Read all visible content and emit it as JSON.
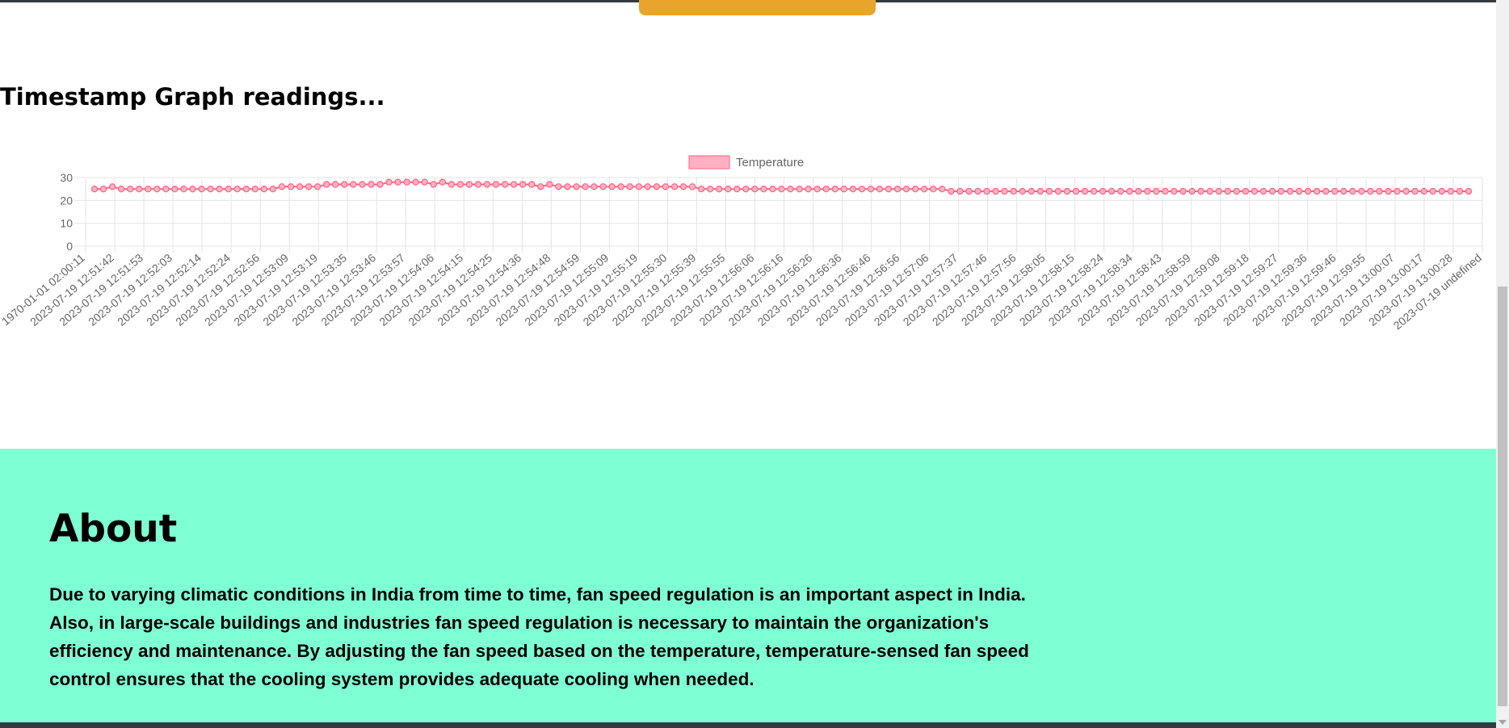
{
  "graph_section": {
    "title": "Timestamp Graph readings..."
  },
  "about": {
    "title": "About",
    "text": "Due to varying climatic conditions in India from time to time, fan speed regulation is an important aspect in India. Also, in large-scale buildings and industries fan speed regulation is necessary to maintain the organization's efficiency and maintenance. By adjusting the fan speed based on the temperature, temperature-sensed fan speed control ensures that the cooling system provides adequate cooling when needed."
  },
  "colors": {
    "about_bg": "#7fffd4",
    "accent_tab": "#e9a42c",
    "series_line": "#ff6384",
    "series_fill": "#ffb1c1"
  },
  "chart_data": {
    "type": "line",
    "title": "",
    "legend": {
      "position": "top-center",
      "entries": [
        "Temperature"
      ]
    },
    "ylim": [
      0,
      30
    ],
    "y_ticks": [
      0,
      10,
      20,
      30
    ],
    "grid": true,
    "x_tick_labels": [
      "1970-01-01 02:00:11",
      "2023-07-19 12:51:42",
      "2023-07-19 12:51:53",
      "2023-07-19 12:52:03",
      "2023-07-19 12:52:14",
      "2023-07-19 12:52:24",
      "2023-07-19 12:52:56",
      "2023-07-19 12:53:09",
      "2023-07-19 12:53:19",
      "2023-07-19 12:53:35",
      "2023-07-19 12:53:46",
      "2023-07-19 12:53:57",
      "2023-07-19 12:54:06",
      "2023-07-19 12:54:15",
      "2023-07-19 12:54:25",
      "2023-07-19 12:54:36",
      "2023-07-19 12:54:48",
      "2023-07-19 12:54:59",
      "2023-07-19 12:55:09",
      "2023-07-19 12:55:19",
      "2023-07-19 12:55:30",
      "2023-07-19 12:55:39",
      "2023-07-19 12:55:55",
      "2023-07-19 12:56:06",
      "2023-07-19 12:56:16",
      "2023-07-19 12:56:26",
      "2023-07-19 12:56:36",
      "2023-07-19 12:56:46",
      "2023-07-19 12:56:56",
      "2023-07-19 12:57:06",
      "2023-07-19 12:57:37",
      "2023-07-19 12:57:46",
      "2023-07-19 12:57:56",
      "2023-07-19 12:58:05",
      "2023-07-19 12:58:15",
      "2023-07-19 12:58:24",
      "2023-07-19 12:58:34",
      "2023-07-19 12:58:43",
      "2023-07-19 12:58:59",
      "2023-07-19 12:59:08",
      "2023-07-19 12:59:18",
      "2023-07-19 12:59:27",
      "2023-07-19 12:59:36",
      "2023-07-19 12:59:46",
      "2023-07-19 12:59:55",
      "2023-07-19 13:00:07",
      "2023-07-19 13:00:17",
      "2023-07-19 13:00:28",
      "2023-07-19 undefined"
    ],
    "series": [
      {
        "name": "Temperature",
        "values": [
          25,
          25,
          26,
          25,
          25,
          25,
          25,
          25,
          25,
          25,
          25,
          25,
          25,
          25,
          25,
          25,
          25,
          25,
          25,
          25,
          25,
          26,
          26,
          26,
          26,
          26,
          27,
          27,
          27,
          27,
          27,
          27,
          27,
          28,
          28,
          28,
          28,
          28,
          27,
          28,
          27,
          27,
          27,
          27,
          27,
          27,
          27,
          27,
          27,
          27,
          26,
          27,
          26,
          26,
          26,
          26,
          26,
          26,
          26,
          26,
          26,
          26,
          26,
          26,
          26,
          26,
          26,
          26,
          25,
          25,
          25,
          25,
          25,
          25,
          25,
          25,
          25,
          25,
          25,
          25,
          25,
          25,
          25,
          25,
          25,
          25,
          25,
          25,
          25,
          25,
          25,
          25,
          25,
          25,
          25,
          25,
          24,
          24,
          24,
          24,
          24,
          24,
          24,
          24,
          24,
          24,
          24,
          24,
          24,
          24,
          24,
          24,
          24,
          24,
          24,
          24,
          24,
          24,
          24,
          24,
          24,
          24,
          24,
          24,
          24,
          24,
          24,
          24,
          24,
          24,
          24,
          24,
          24,
          24,
          24,
          24,
          24,
          24,
          24,
          24,
          24,
          24,
          24,
          24,
          24,
          24,
          24,
          24,
          24,
          24,
          24,
          24,
          24,
          24,
          24
        ]
      }
    ]
  }
}
